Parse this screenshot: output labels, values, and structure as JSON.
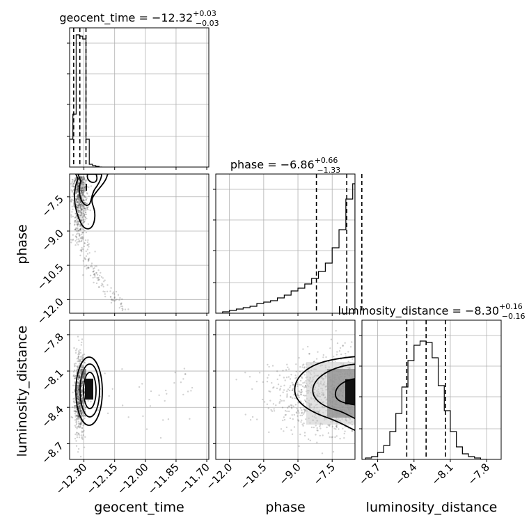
{
  "chart_data": {
    "type": "corner",
    "parameters": [
      "geocent_time",
      "phase",
      "luminosity_distance"
    ],
    "axis_labels": {
      "geocent_time": "geocent_time",
      "phase": "phase",
      "luminosity_distance": "luminosity_distance"
    },
    "ranges": {
      "geocent_time": [
        -12.37,
        -11.69
      ],
      "phase": [
        -12.6,
        -6.5
      ],
      "luminosity_distance": [
        -8.83,
        -7.68
      ]
    },
    "ticks": {
      "geocent_time": [
        -12.3,
        -12.15,
        -12.0,
        -11.85,
        -11.7
      ],
      "phase": [
        -12.0,
        -10.5,
        -9.0,
        -7.5
      ],
      "luminosity_distance": [
        -8.7,
        -8.4,
        -8.1,
        -7.8
      ]
    },
    "tick_labels": {
      "geocent_time": [
        "−12.30",
        "−12.15",
        "−12.00",
        "−11.85",
        "−11.70"
      ],
      "phase": [
        "−12.0",
        "−10.5",
        "−9.0",
        "−7.5"
      ],
      "luminosity_distance": [
        "−8.7",
        "−8.4",
        "−8.1",
        "−7.8"
      ]
    },
    "titles": {
      "geocent_time": {
        "name": "geocent_time",
        "median": "−12.32",
        "plus": "+0.03",
        "minus": "−0.03"
      },
      "phase": {
        "name": "phase",
        "median": "−6.86",
        "plus": "+0.66",
        "minus": "−1.33"
      },
      "luminosity_distance": {
        "name": "luminosity_distance",
        "median": "−8.30",
        "plus": "+0.16",
        "minus": "−0.16"
      }
    },
    "quantiles": {
      "geocent_time": [
        -12.35,
        -12.32,
        -12.29
      ],
      "phase": [
        -8.19,
        -6.86,
        -6.2
      ],
      "luminosity_distance": [
        -8.46,
        -8.3,
        -8.14
      ]
    },
    "histograms": {
      "geocent_time": {
        "edges": [
          -12.37,
          -12.354,
          -12.338,
          -12.322,
          -12.306,
          -12.29,
          -12.274,
          -12.258,
          -12.242,
          -12.226,
          -12.21
        ],
        "counts": [
          0.2,
          0.38,
          0.95,
          0.94,
          0.92,
          0.2,
          0.02,
          0.01,
          0.005,
          0.0
        ]
      },
      "phase": {
        "edges": [
          -12.6,
          -12.3,
          -12.0,
          -11.7,
          -11.4,
          -11.1,
          -10.8,
          -10.5,
          -10.2,
          -9.9,
          -9.6,
          -9.3,
          -9.0,
          -8.7,
          -8.4,
          -8.1,
          -7.8,
          -7.5,
          -7.2,
          -6.9,
          -6.6,
          -6.5
        ],
        "counts": [
          0.0,
          0.01,
          0.02,
          0.03,
          0.04,
          0.05,
          0.07,
          0.08,
          0.09,
          0.11,
          0.13,
          0.16,
          0.18,
          0.21,
          0.25,
          0.3,
          0.36,
          0.47,
          0.6,
          0.82,
          0.93
        ]
      },
      "luminosity_distance": {
        "edges": [
          -8.8,
          -8.75,
          -8.7,
          -8.65,
          -8.6,
          -8.55,
          -8.5,
          -8.45,
          -8.4,
          -8.35,
          -8.3,
          -8.25,
          -8.2,
          -8.15,
          -8.1,
          -8.05,
          -8.0,
          -7.95,
          -7.9,
          -7.85,
          -7.8
        ],
        "counts": [
          0.01,
          0.02,
          0.05,
          0.1,
          0.2,
          0.33,
          0.52,
          0.71,
          0.82,
          0.85,
          0.84,
          0.73,
          0.53,
          0.35,
          0.2,
          0.09,
          0.04,
          0.02,
          0.01,
          0.0
        ]
      }
    }
  }
}
